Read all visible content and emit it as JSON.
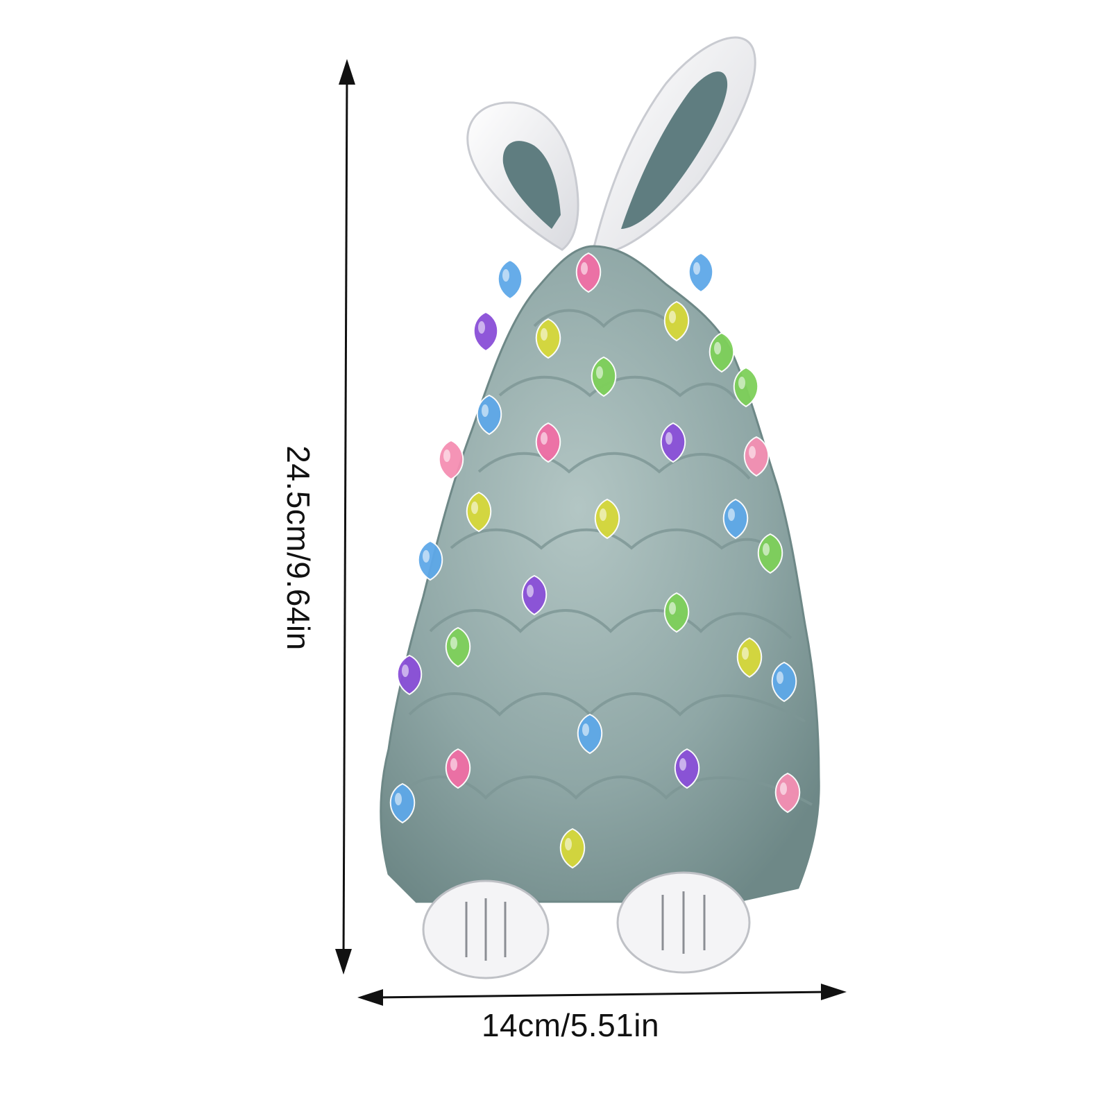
{
  "product": {
    "name_icon": "bunny-ear-ceramic-tree-figurine",
    "tree_color": "#8fa7a6",
    "ear_color": "#efeff1",
    "ear_inner_color": "#5f7d80",
    "bulb_colors": [
      "#f06ea5",
      "#d6d83a",
      "#8a4fd8",
      "#5ea8e8",
      "#7ed05a",
      "#f58fb3"
    ]
  },
  "dimensions": {
    "height_label": "24.5cm/9.64in",
    "width_label": "14cm/5.51in",
    "arrow_color": "#111111"
  }
}
